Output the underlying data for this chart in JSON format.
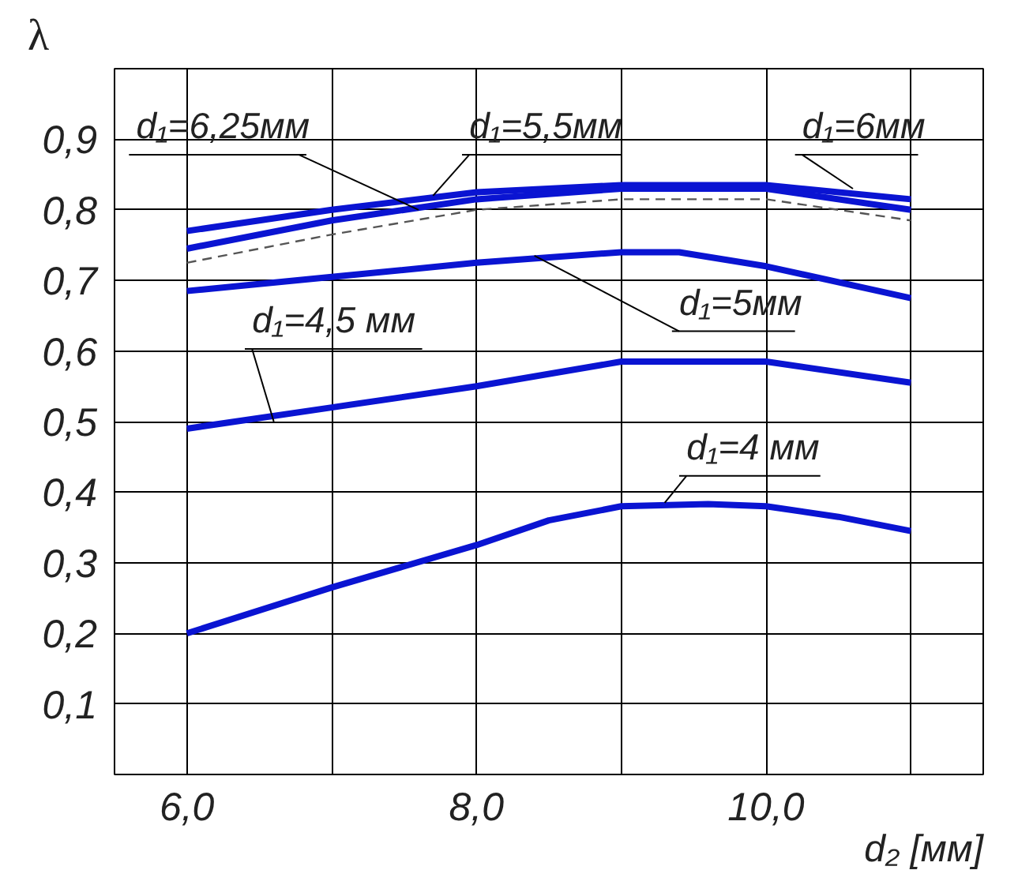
{
  "chart_data": {
    "type": "line",
    "ylabel": "λ",
    "xlabel": "d₂ [мм]",
    "xlim": [
      5.5,
      11.5
    ],
    "ylim": [
      0,
      1
    ],
    "xticks": [
      {
        "value": 6,
        "label": "6,0"
      },
      {
        "value": 7,
        "label": null
      },
      {
        "value": 8,
        "label": "8,0"
      },
      {
        "value": 9,
        "label": null
      },
      {
        "value": 10,
        "label": "10,0"
      },
      {
        "value": 11,
        "label": null
      }
    ],
    "yticks": [
      {
        "value": 0.1,
        "label": "0,1"
      },
      {
        "value": 0.2,
        "label": "0,2"
      },
      {
        "value": 0.3,
        "label": "0,3"
      },
      {
        "value": 0.4,
        "label": "0,4"
      },
      {
        "value": 0.5,
        "label": "0,5"
      },
      {
        "value": 0.6,
        "label": "0,6"
      },
      {
        "value": 0.7,
        "label": "0,7"
      },
      {
        "value": 0.8,
        "label": "0,8"
      },
      {
        "value": 0.9,
        "label": "0,9"
      }
    ],
    "grid": true,
    "series": [
      {
        "color": "#0a14d2",
        "x": [
          6,
          7,
          8,
          9,
          10,
          11
        ],
        "values": [
          0.77,
          0.8,
          0.825,
          0.835,
          0.835,
          0.815
        ]
      },
      {
        "color": "#0a14d2",
        "x": [
          6,
          7,
          8,
          9,
          10,
          11
        ],
        "values": [
          0.745,
          0.785,
          0.815,
          0.83,
          0.83,
          0.8
        ]
      },
      {
        "color": "#555555",
        "line_style": "dashed",
        "x": [
          6,
          7,
          8,
          9,
          10,
          11
        ],
        "values": [
          0.725,
          0.765,
          0.8,
          0.815,
          0.815,
          0.785
        ]
      },
      {
        "color": "#0a14d2",
        "x": [
          6,
          7,
          8,
          9,
          9.4,
          10,
          11
        ],
        "values": [
          0.685,
          0.705,
          0.725,
          0.74,
          0.74,
          0.72,
          0.675
        ]
      },
      {
        "color": "#0a14d2",
        "x": [
          6,
          7,
          8,
          9,
          10,
          11
        ],
        "values": [
          0.49,
          0.52,
          0.55,
          0.585,
          0.585,
          0.555
        ]
      },
      {
        "color": "#0a14d2",
        "x": [
          6,
          7,
          8,
          8.5,
          9,
          9.6,
          10,
          10.5,
          11
        ],
        "values": [
          0.2,
          0.265,
          0.325,
          0.36,
          0.38,
          0.383,
          0.38,
          0.365,
          0.345
        ]
      }
    ],
    "annotations": [
      {
        "text": "d₁=6,25мм",
        "x": 7.6,
        "y": 0.8
      },
      {
        "text": "d₁=5,5мм",
        "x": 7.7,
        "y": 0.82
      },
      {
        "text": "d₁=6мм",
        "x": 10.6,
        "y": 0.83
      },
      {
        "text": "d₁=5мм",
        "x": 8.4,
        "y": 0.735
      },
      {
        "text": "d₁=4,5 мм",
        "x": 6.6,
        "y": 0.5
      },
      {
        "text": "d₁=4 мм",
        "x": 9.3,
        "y": 0.385
      }
    ]
  }
}
